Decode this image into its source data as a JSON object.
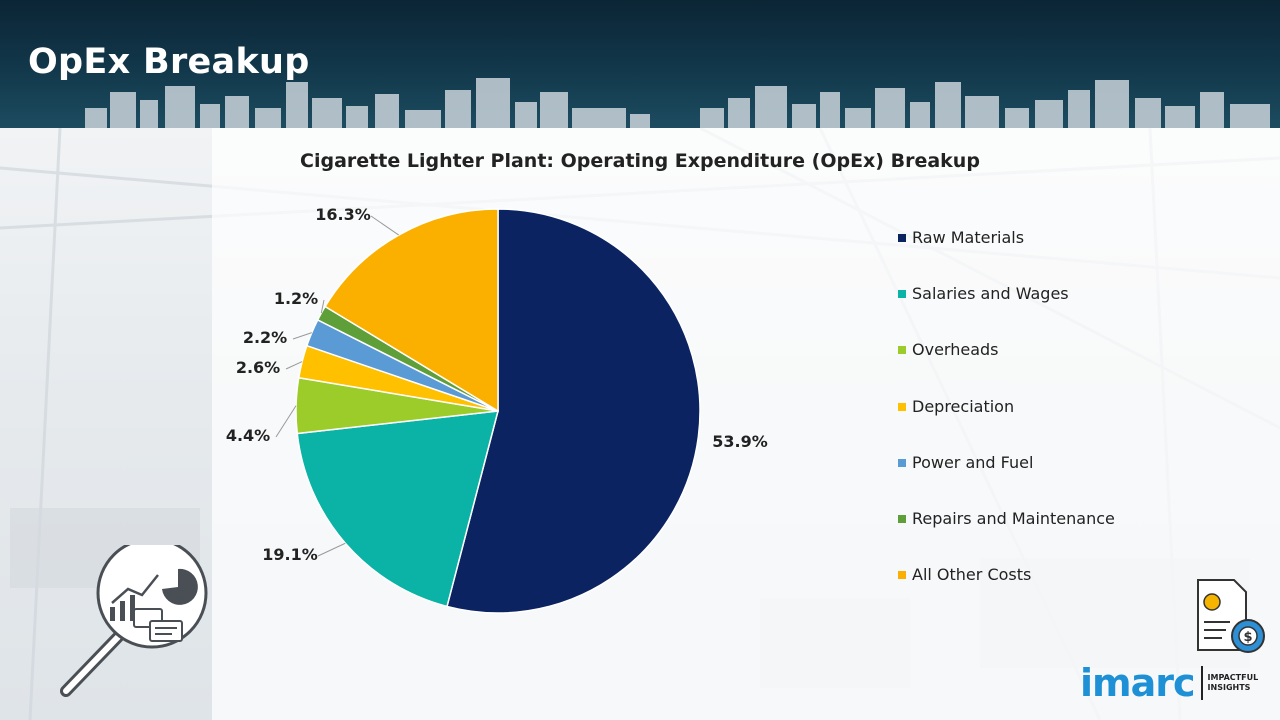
{
  "header": {
    "title": "OpEx Breakup"
  },
  "chart_data": {
    "type": "pie",
    "title": "Cigarette Lighter Plant: Operating Expenditure (OpEx) Breakup",
    "categories": [
      "Raw Materials",
      "Salaries and Wages",
      "Overheads",
      "Depreciation",
      "Power and Fuel",
      "Repairs and Maintenance",
      "All Other Costs"
    ],
    "values": [
      53.9,
      19.1,
      4.4,
      2.6,
      2.2,
      1.2,
      16.3
    ],
    "labels": [
      "53.9%",
      "19.1%",
      "4.4%",
      "2.6%",
      "2.2%",
      "1.2%",
      "16.3%"
    ],
    "colors": [
      "#0b2361",
      "#0ab3a5",
      "#9bcc2a",
      "#ffc000",
      "#5b9bd5",
      "#5f9f3a",
      "#fbb000"
    ],
    "legend_position": "right"
  },
  "logo": {
    "word": "imarc",
    "tagline_1": "IMPACTFUL",
    "tagline_2": "INSIGHTS"
  }
}
